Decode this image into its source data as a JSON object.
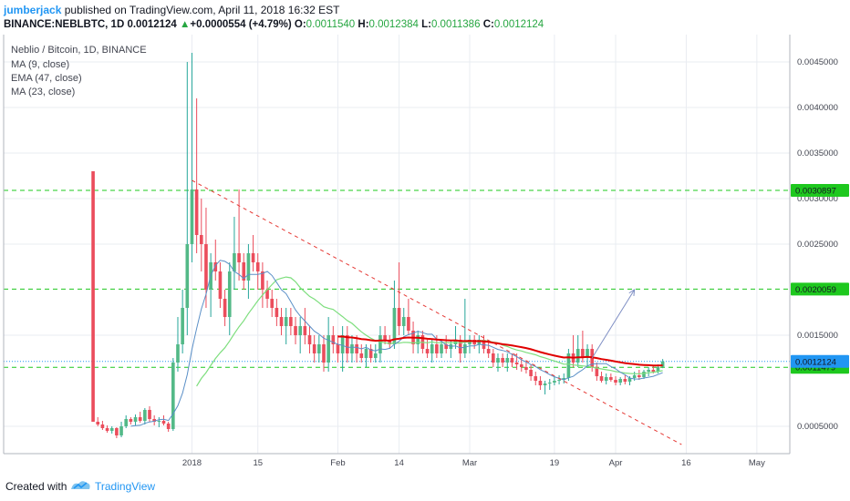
{
  "header": {
    "author": "jumberjack",
    "published_text": "published on TradingView.com, April 11, 2018 16:32 EST",
    "symbol": "BINANCE:NEBLBTC, 1D",
    "last": "0.0012124",
    "change": "+0.0000554 (+4.79%)",
    "open_label": "O:",
    "open": "0.0011540",
    "high_label": "H:",
    "high": "0.0012384",
    "low_label": "L:",
    "low": "0.0011386",
    "close_label": "C:",
    "close": "0.0012124"
  },
  "footer": {
    "created_with": "Created with",
    "brand": "TradingView"
  },
  "colors": {
    "up": "#26a69a",
    "up_fill": "#53b987",
    "down": "#eb4d5c",
    "ma9": "#5a8fc7",
    "ema47": "#e00000",
    "ma23": "#7dde7d",
    "hline": "#1ec81e",
    "trend": "#e53935",
    "arrow": "#7f8fc4",
    "last": "#2196f3"
  },
  "chart_data": {
    "type": "candlestick",
    "title": "Neblio / Bitcoin, 1D, BINANCE",
    "legend": [
      "MA (9, close)",
      "EMA (47, close)",
      "MA (23, close)"
    ],
    "y_ticks": [
      "0.0005000",
      "0.0015000",
      "0.0025000",
      "0.0030000",
      "0.0035000",
      "0.0040000",
      "0.0045000"
    ],
    "ylim": [
      0.0002,
      0.0048
    ],
    "x_tick_labels": [
      "2018",
      "15",
      "Feb",
      "14",
      "Mar",
      "19",
      "Apr",
      "16",
      "May"
    ],
    "x_tick_dates": [
      "2018-01-01",
      "2018-01-15",
      "2018-02-01",
      "2018-02-14",
      "2018-03-01",
      "2018-03-19",
      "2018-04-01",
      "2018-04-16",
      "2018-05-01"
    ],
    "x_range": [
      "2017-11-22",
      "2018-05-08"
    ],
    "grid": true,
    "price_lines": [
      {
        "label": "0.0030897",
        "value": 0.0030897,
        "style": "dashed"
      },
      {
        "label": "0.0020059",
        "value": 0.0020059,
        "style": "dashed"
      },
      {
        "label": "0.0011479",
        "value": 0.0011479,
        "style": "dashed"
      },
      {
        "label": "0.0012124",
        "value": 0.0012124,
        "style": "dotted-last"
      }
    ],
    "candles": [
      {
        "d": "2017-12-11",
        "o": 0.0033,
        "h": 0.0033,
        "l": 0.00055,
        "c": 0.00055
      },
      {
        "d": "2017-12-12",
        "o": 0.00055,
        "h": 0.0006,
        "l": 0.0005,
        "c": 0.00052
      },
      {
        "d": "2017-12-13",
        "o": 0.00052,
        "h": 0.00056,
        "l": 0.00046,
        "c": 0.00048
      },
      {
        "d": "2017-12-14",
        "o": 0.00048,
        "h": 0.00051,
        "l": 0.00043,
        "c": 0.00045
      },
      {
        "d": "2017-12-15",
        "o": 0.00045,
        "h": 0.0005,
        "l": 0.00042,
        "c": 0.00048
      },
      {
        "d": "2017-12-16",
        "o": 0.00048,
        "h": 0.00049,
        "l": 0.00037,
        "c": 0.0004
      },
      {
        "d": "2017-12-17",
        "o": 0.0004,
        "h": 0.00055,
        "l": 0.00038,
        "c": 0.0005
      },
      {
        "d": "2017-12-18",
        "o": 0.0005,
        "h": 0.00062,
        "l": 0.00048,
        "c": 0.00058
      },
      {
        "d": "2017-12-19",
        "o": 0.00058,
        "h": 0.0006,
        "l": 0.00052,
        "c": 0.00055
      },
      {
        "d": "2017-12-20",
        "o": 0.00055,
        "h": 0.00063,
        "l": 0.00051,
        "c": 0.0006
      },
      {
        "d": "2017-12-21",
        "o": 0.0006,
        "h": 0.00066,
        "l": 0.00054,
        "c": 0.00056
      },
      {
        "d": "2017-12-22",
        "o": 0.00056,
        "h": 0.0007,
        "l": 0.00052,
        "c": 0.00068
      },
      {
        "d": "2017-12-23",
        "o": 0.00068,
        "h": 0.00072,
        "l": 0.00055,
        "c": 0.00058
      },
      {
        "d": "2017-12-24",
        "o": 0.00058,
        "h": 0.00062,
        "l": 0.00051,
        "c": 0.00055
      },
      {
        "d": "2017-12-25",
        "o": 0.00055,
        "h": 0.0006,
        "l": 0.00049,
        "c": 0.00056
      },
      {
        "d": "2017-12-26",
        "o": 0.00056,
        "h": 0.00062,
        "l": 0.00051,
        "c": 0.00053
      },
      {
        "d": "2017-12-27",
        "o": 0.00053,
        "h": 0.00055,
        "l": 0.00044,
        "c": 0.00047
      },
      {
        "d": "2017-12-28",
        "o": 0.00047,
        "h": 0.00125,
        "l": 0.00045,
        "c": 0.0012
      },
      {
        "d": "2017-12-29",
        "o": 0.0012,
        "h": 0.0017,
        "l": 0.0011,
        "c": 0.0014
      },
      {
        "d": "2017-12-30",
        "o": 0.0014,
        "h": 0.002,
        "l": 0.0013,
        "c": 0.0018
      },
      {
        "d": "2017-12-31",
        "o": 0.0018,
        "h": 0.0045,
        "l": 0.0015,
        "c": 0.0025
      },
      {
        "d": "2018-01-01",
        "o": 0.0025,
        "h": 0.0046,
        "l": 0.0023,
        "c": 0.0031
      },
      {
        "d": "2018-01-02",
        "o": 0.0031,
        "h": 0.0041,
        "l": 0.0024,
        "c": 0.0026
      },
      {
        "d": "2018-01-03",
        "o": 0.0026,
        "h": 0.003,
        "l": 0.0022,
        "c": 0.0025
      },
      {
        "d": "2018-01-04",
        "o": 0.0025,
        "h": 0.0029,
        "l": 0.0018,
        "c": 0.002
      },
      {
        "d": "2018-01-05",
        "o": 0.002,
        "h": 0.0024,
        "l": 0.0017,
        "c": 0.0023
      },
      {
        "d": "2018-01-06",
        "o": 0.0023,
        "h": 0.00255,
        "l": 0.0021,
        "c": 0.0022
      },
      {
        "d": "2018-01-07",
        "o": 0.0022,
        "h": 0.0023,
        "l": 0.0018,
        "c": 0.0019
      },
      {
        "d": "2018-01-08",
        "o": 0.0019,
        "h": 0.002,
        "l": 0.0016,
        "c": 0.0017
      },
      {
        "d": "2018-01-09",
        "o": 0.0017,
        "h": 0.0023,
        "l": 0.0015,
        "c": 0.0022
      },
      {
        "d": "2018-01-10",
        "o": 0.0022,
        "h": 0.0028,
        "l": 0.002,
        "c": 0.0024
      },
      {
        "d": "2018-01-11",
        "o": 0.0024,
        "h": 0.0031,
        "l": 0.0021,
        "c": 0.0023
      },
      {
        "d": "2018-01-12",
        "o": 0.0023,
        "h": 0.0024,
        "l": 0.002,
        "c": 0.0021
      },
      {
        "d": "2018-01-13",
        "o": 0.0021,
        "h": 0.0025,
        "l": 0.0019,
        "c": 0.0024
      },
      {
        "d": "2018-01-14",
        "o": 0.0024,
        "h": 0.0026,
        "l": 0.0022,
        "c": 0.0023
      },
      {
        "d": "2018-01-15",
        "o": 0.0023,
        "h": 0.0024,
        "l": 0.002,
        "c": 0.0022
      },
      {
        "d": "2018-01-16",
        "o": 0.0022,
        "h": 0.0023,
        "l": 0.0018,
        "c": 0.002
      },
      {
        "d": "2018-01-17",
        "o": 0.002,
        "h": 0.0021,
        "l": 0.0018,
        "c": 0.0019
      },
      {
        "d": "2018-01-18",
        "o": 0.0019,
        "h": 0.002,
        "l": 0.0017,
        "c": 0.0018
      },
      {
        "d": "2018-01-19",
        "o": 0.0018,
        "h": 0.0019,
        "l": 0.0016,
        "c": 0.0017
      },
      {
        "d": "2018-01-20",
        "o": 0.0017,
        "h": 0.0018,
        "l": 0.0015,
        "c": 0.0016
      },
      {
        "d": "2018-01-21",
        "o": 0.0016,
        "h": 0.0018,
        "l": 0.0014,
        "c": 0.0017
      },
      {
        "d": "2018-01-22",
        "o": 0.0017,
        "h": 0.0018,
        "l": 0.0015,
        "c": 0.0016
      },
      {
        "d": "2018-01-23",
        "o": 0.0016,
        "h": 0.0017,
        "l": 0.0014,
        "c": 0.0015
      },
      {
        "d": "2018-01-24",
        "o": 0.0015,
        "h": 0.0017,
        "l": 0.0013,
        "c": 0.0016
      },
      {
        "d": "2018-01-25",
        "o": 0.0016,
        "h": 0.0018,
        "l": 0.0014,
        "c": 0.0015
      },
      {
        "d": "2018-01-26",
        "o": 0.0015,
        "h": 0.0016,
        "l": 0.0013,
        "c": 0.0014
      },
      {
        "d": "2018-01-27",
        "o": 0.0014,
        "h": 0.0015,
        "l": 0.0012,
        "c": 0.0013
      },
      {
        "d": "2018-01-28",
        "o": 0.0013,
        "h": 0.0015,
        "l": 0.0012,
        "c": 0.0014
      },
      {
        "d": "2018-01-29",
        "o": 0.0014,
        "h": 0.0015,
        "l": 0.0011,
        "c": 0.0012
      },
      {
        "d": "2018-01-30",
        "o": 0.0012,
        "h": 0.0017,
        "l": 0.0011,
        "c": 0.0015
      },
      {
        "d": "2018-01-31",
        "o": 0.0015,
        "h": 0.0016,
        "l": 0.0013,
        "c": 0.0014
      },
      {
        "d": "2018-02-01",
        "o": 0.0014,
        "h": 0.0015,
        "l": 0.0012,
        "c": 0.0013
      },
      {
        "d": "2018-02-02",
        "o": 0.0013,
        "h": 0.0016,
        "l": 0.0011,
        "c": 0.0015
      },
      {
        "d": "2018-02-03",
        "o": 0.0015,
        "h": 0.0016,
        "l": 0.0012,
        "c": 0.0013
      },
      {
        "d": "2018-02-04",
        "o": 0.0013,
        "h": 0.0015,
        "l": 0.0012,
        "c": 0.0014
      },
      {
        "d": "2018-02-05",
        "o": 0.0014,
        "h": 0.0015,
        "l": 0.0012,
        "c": 0.0013
      },
      {
        "d": "2018-02-06",
        "o": 0.0013,
        "h": 0.0014,
        "l": 0.0012,
        "c": 0.00125
      },
      {
        "d": "2018-02-07",
        "o": 0.00125,
        "h": 0.0014,
        "l": 0.00115,
        "c": 0.00135
      },
      {
        "d": "2018-02-08",
        "o": 0.00135,
        "h": 0.0014,
        "l": 0.0012,
        "c": 0.00125
      },
      {
        "d": "2018-02-09",
        "o": 0.00125,
        "h": 0.0014,
        "l": 0.0012,
        "c": 0.0013
      },
      {
        "d": "2018-02-10",
        "o": 0.0013,
        "h": 0.0016,
        "l": 0.0012,
        "c": 0.0015
      },
      {
        "d": "2018-02-11",
        "o": 0.0015,
        "h": 0.0016,
        "l": 0.0014,
        "c": 0.00145
      },
      {
        "d": "2018-02-12",
        "o": 0.00145,
        "h": 0.0015,
        "l": 0.00135,
        "c": 0.0014
      },
      {
        "d": "2018-02-13",
        "o": 0.0014,
        "h": 0.0021,
        "l": 0.00135,
        "c": 0.0018
      },
      {
        "d": "2018-02-14",
        "o": 0.0018,
        "h": 0.0023,
        "l": 0.0015,
        "c": 0.0016
      },
      {
        "d": "2018-02-15",
        "o": 0.0016,
        "h": 0.0018,
        "l": 0.0015,
        "c": 0.0017
      },
      {
        "d": "2018-02-16",
        "o": 0.0017,
        "h": 0.0019,
        "l": 0.0015,
        "c": 0.00155
      },
      {
        "d": "2018-02-17",
        "o": 0.00155,
        "h": 0.00165,
        "l": 0.0013,
        "c": 0.0014
      },
      {
        "d": "2018-02-18",
        "o": 0.0014,
        "h": 0.00155,
        "l": 0.0013,
        "c": 0.0015
      },
      {
        "d": "2018-02-19",
        "o": 0.0015,
        "h": 0.00155,
        "l": 0.0013,
        "c": 0.00135
      },
      {
        "d": "2018-02-20",
        "o": 0.00135,
        "h": 0.00145,
        "l": 0.00125,
        "c": 0.0013
      },
      {
        "d": "2018-02-21",
        "o": 0.0013,
        "h": 0.00145,
        "l": 0.0012,
        "c": 0.0014
      },
      {
        "d": "2018-02-22",
        "o": 0.0014,
        "h": 0.0015,
        "l": 0.00125,
        "c": 0.0013
      },
      {
        "d": "2018-02-23",
        "o": 0.0013,
        "h": 0.00145,
        "l": 0.00125,
        "c": 0.0014
      },
      {
        "d": "2018-02-24",
        "o": 0.0014,
        "h": 0.0015,
        "l": 0.0013,
        "c": 0.00135
      },
      {
        "d": "2018-02-25",
        "o": 0.00135,
        "h": 0.00145,
        "l": 0.00125,
        "c": 0.0014
      },
      {
        "d": "2018-02-26",
        "o": 0.0014,
        "h": 0.0016,
        "l": 0.00135,
        "c": 0.00145
      },
      {
        "d": "2018-02-27",
        "o": 0.00145,
        "h": 0.0015,
        "l": 0.0012,
        "c": 0.0013
      },
      {
        "d": "2018-02-28",
        "o": 0.0013,
        "h": 0.0019,
        "l": 0.00125,
        "c": 0.0014
      },
      {
        "d": "2018-03-01",
        "o": 0.0014,
        "h": 0.0015,
        "l": 0.0013,
        "c": 0.00145
      },
      {
        "d": "2018-03-02",
        "o": 0.00145,
        "h": 0.0015,
        "l": 0.00135,
        "c": 0.0014
      },
      {
        "d": "2018-03-03",
        "o": 0.0014,
        "h": 0.0015,
        "l": 0.0013,
        "c": 0.00145
      },
      {
        "d": "2018-03-04",
        "o": 0.00145,
        "h": 0.0015,
        "l": 0.0013,
        "c": 0.00135
      },
      {
        "d": "2018-03-05",
        "o": 0.00135,
        "h": 0.00145,
        "l": 0.00125,
        "c": 0.0013
      },
      {
        "d": "2018-03-06",
        "o": 0.0013,
        "h": 0.00135,
        "l": 0.00115,
        "c": 0.0012
      },
      {
        "d": "2018-03-07",
        "o": 0.0012,
        "h": 0.0013,
        "l": 0.0011,
        "c": 0.00125
      },
      {
        "d": "2018-03-08",
        "o": 0.00125,
        "h": 0.0013,
        "l": 0.00115,
        "c": 0.0012
      },
      {
        "d": "2018-03-09",
        "o": 0.0012,
        "h": 0.0013,
        "l": 0.0011,
        "c": 0.00125
      },
      {
        "d": "2018-03-10",
        "o": 0.00125,
        "h": 0.0013,
        "l": 0.00115,
        "c": 0.0012
      },
      {
        "d": "2018-03-11",
        "o": 0.0012,
        "h": 0.0013,
        "l": 0.00112,
        "c": 0.00118
      },
      {
        "d": "2018-03-12",
        "o": 0.00118,
        "h": 0.00125,
        "l": 0.0011,
        "c": 0.00115
      },
      {
        "d": "2018-03-13",
        "o": 0.00115,
        "h": 0.00122,
        "l": 0.00108,
        "c": 0.00112
      },
      {
        "d": "2018-03-14",
        "o": 0.00112,
        "h": 0.00118,
        "l": 0.001,
        "c": 0.00105
      },
      {
        "d": "2018-03-15",
        "o": 0.00105,
        "h": 0.0011,
        "l": 0.00095,
        "c": 0.001
      },
      {
        "d": "2018-03-16",
        "o": 0.001,
        "h": 0.00105,
        "l": 0.0009,
        "c": 0.00095
      },
      {
        "d": "2018-03-17",
        "o": 0.00095,
        "h": 0.001,
        "l": 0.00085,
        "c": 0.00097
      },
      {
        "d": "2018-03-18",
        "o": 0.00097,
        "h": 0.00102,
        "l": 0.0009,
        "c": 0.00098
      },
      {
        "d": "2018-03-19",
        "o": 0.00098,
        "h": 0.00105,
        "l": 0.00095,
        "c": 0.001
      },
      {
        "d": "2018-03-20",
        "o": 0.001,
        "h": 0.00106,
        "l": 0.00096,
        "c": 0.00101
      },
      {
        "d": "2018-03-21",
        "o": 0.00101,
        "h": 0.00108,
        "l": 0.00097,
        "c": 0.00103
      },
      {
        "d": "2018-03-22",
        "o": 0.00103,
        "h": 0.00135,
        "l": 0.001,
        "c": 0.0013
      },
      {
        "d": "2018-03-23",
        "o": 0.0013,
        "h": 0.0015,
        "l": 0.00115,
        "c": 0.0012
      },
      {
        "d": "2018-03-24",
        "o": 0.0012,
        "h": 0.0015,
        "l": 0.00115,
        "c": 0.00135
      },
      {
        "d": "2018-03-25",
        "o": 0.00135,
        "h": 0.00155,
        "l": 0.0012,
        "c": 0.00125
      },
      {
        "d": "2018-03-26",
        "o": 0.00125,
        "h": 0.0014,
        "l": 0.00115,
        "c": 0.00135
      },
      {
        "d": "2018-03-27",
        "o": 0.00135,
        "h": 0.0014,
        "l": 0.0011,
        "c": 0.00115
      },
      {
        "d": "2018-03-28",
        "o": 0.00115,
        "h": 0.0012,
        "l": 0.001,
        "c": 0.00105
      },
      {
        "d": "2018-03-29",
        "o": 0.00105,
        "h": 0.0011,
        "l": 0.00098,
        "c": 0.001
      },
      {
        "d": "2018-03-30",
        "o": 0.001,
        "h": 0.00108,
        "l": 0.00096,
        "c": 0.00104
      },
      {
        "d": "2018-03-31",
        "o": 0.00104,
        "h": 0.00108,
        "l": 0.00099,
        "c": 0.00101
      },
      {
        "d": "2018-04-01",
        "o": 0.00101,
        "h": 0.00105,
        "l": 0.00095,
        "c": 0.00098
      },
      {
        "d": "2018-04-02",
        "o": 0.00098,
        "h": 0.00104,
        "l": 0.00095,
        "c": 0.00102
      },
      {
        "d": "2018-04-03",
        "o": 0.00102,
        "h": 0.00106,
        "l": 0.00096,
        "c": 0.00099
      },
      {
        "d": "2018-04-04",
        "o": 0.00099,
        "h": 0.00105,
        "l": 0.00095,
        "c": 0.00103
      },
      {
        "d": "2018-04-05",
        "o": 0.00103,
        "h": 0.0011,
        "l": 0.001,
        "c": 0.00106
      },
      {
        "d": "2018-04-06",
        "o": 0.00106,
        "h": 0.00112,
        "l": 0.00101,
        "c": 0.00104
      },
      {
        "d": "2018-04-07",
        "o": 0.00104,
        "h": 0.00112,
        "l": 0.00102,
        "c": 0.0011
      },
      {
        "d": "2018-04-08",
        "o": 0.0011,
        "h": 0.00115,
        "l": 0.00105,
        "c": 0.00112
      },
      {
        "d": "2018-04-09",
        "o": 0.00112,
        "h": 0.00116,
        "l": 0.00108,
        "c": 0.0011
      },
      {
        "d": "2018-04-10",
        "o": 0.0011,
        "h": 0.00118,
        "l": 0.00108,
        "c": 0.00115
      },
      {
        "d": "2018-04-11",
        "o": 0.001154,
        "h": 0.0012384,
        "l": 0.0011386,
        "c": 0.0012124
      }
    ],
    "trendline": {
      "from": {
        "d": "2018-01-01",
        "v": 0.0032
      },
      "to": {
        "d": "2018-04-15",
        "v": 0.0003
      }
    },
    "arrow": {
      "from": {
        "d": "2018-03-27",
        "v": 0.00125
      },
      "to": {
        "d": "2018-04-05",
        "v": 0.002
      }
    }
  }
}
